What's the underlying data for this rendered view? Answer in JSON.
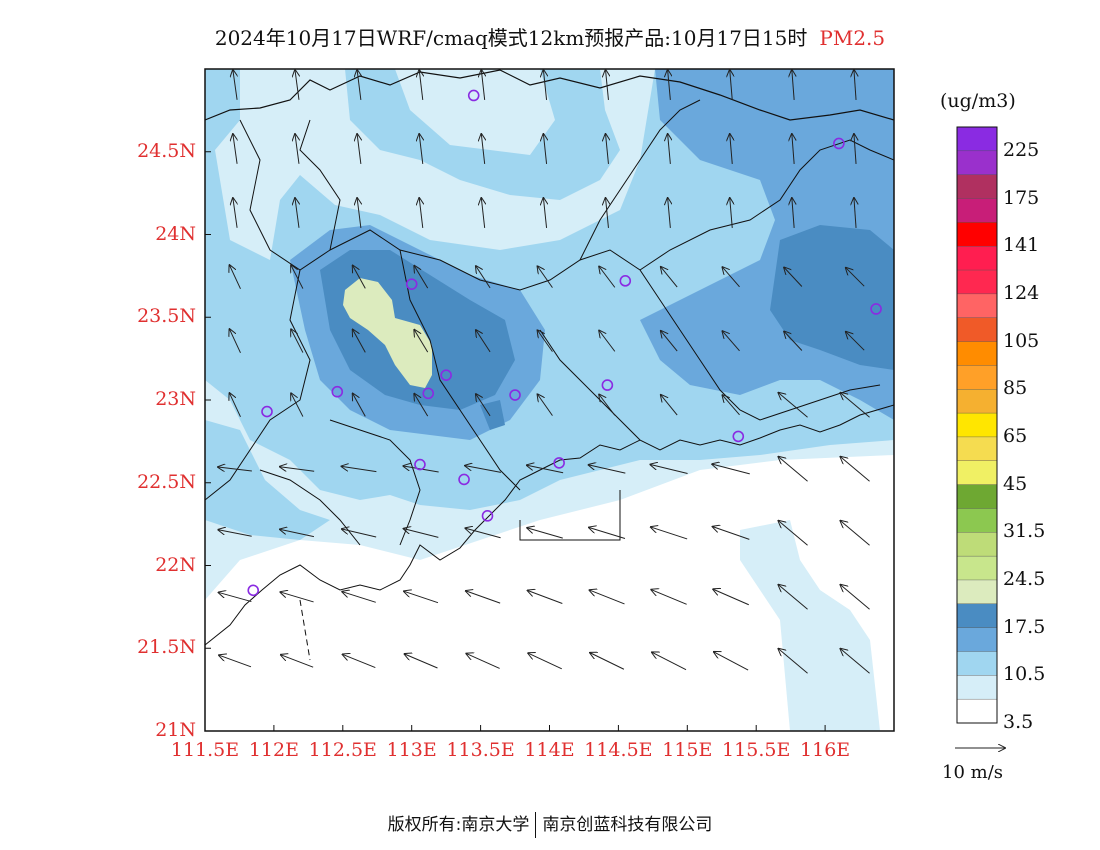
{
  "title": {
    "main": "2024年10月17日WRF/cmaq模式12km预报产品:10月17日15时",
    "variable": "PM2.5"
  },
  "axes": {
    "lat_labels": [
      "24.5N",
      "24N",
      "23.5N",
      "23N",
      "22.5N",
      "22N",
      "21.5N",
      "21N"
    ],
    "lat_values": [
      24.5,
      24.0,
      23.5,
      23.0,
      22.5,
      22.0,
      21.5,
      21.0
    ],
    "lon_labels": [
      "111.5E",
      "112E",
      "112.5E",
      "113E",
      "113.5E",
      "114E",
      "114.5E",
      "115E",
      "115.5E",
      "116E"
    ],
    "lon_values": [
      111.5,
      112.0,
      112.5,
      113.0,
      113.5,
      114.0,
      114.5,
      115.0,
      115.5,
      116.0
    ],
    "lat_range": [
      21.0,
      25.0
    ],
    "lon_range": [
      111.5,
      116.5
    ]
  },
  "colorbar": {
    "unit": "(ug/m3)",
    "labels": [
      "225",
      "175",
      "141",
      "124",
      "105",
      "85",
      "65",
      "45",
      "31.5",
      "24.5",
      "17.5",
      "10.5",
      "3.5"
    ],
    "colors": [
      "#8a2be2",
      "#9a30cc",
      "#b03060",
      "#c81e78",
      "#ff0000",
      "#ff1e50",
      "#ff2850",
      "#ff6464",
      "#f05a28",
      "#ff8c00",
      "#ffa028",
      "#f5b030",
      "#ffe600",
      "#f5dc50",
      "#f0f064",
      "#6ea832",
      "#8cc850",
      "#bedc78",
      "#c8e68c",
      "#dcebbe",
      "#4a8cc2",
      "#6aa8dc",
      "#a0d6f0",
      "#d6eef8",
      "#ffffff"
    ]
  },
  "wind_reference": {
    "label": "10 m/s"
  },
  "footer": {
    "left": "版权所有:南京大学",
    "right": "南京创蓝科技有限公司"
  },
  "stations": [
    {
      "lon": 113.45,
      "lat": 24.84
    },
    {
      "lon": 116.1,
      "lat": 24.55
    },
    {
      "lon": 113.0,
      "lat": 23.7
    },
    {
      "lon": 114.55,
      "lat": 23.72
    },
    {
      "lon": 116.37,
      "lat": 23.55
    },
    {
      "lon": 113.25,
      "lat": 23.15
    },
    {
      "lon": 112.46,
      "lat": 23.05
    },
    {
      "lon": 113.12,
      "lat": 23.04
    },
    {
      "lon": 113.75,
      "lat": 23.03
    },
    {
      "lon": 114.42,
      "lat": 23.09
    },
    {
      "lon": 111.95,
      "lat": 22.93
    },
    {
      "lon": 115.37,
      "lat": 22.78
    },
    {
      "lon": 113.06,
      "lat": 22.61
    },
    {
      "lon": 113.38,
      "lat": 22.52
    },
    {
      "lon": 114.07,
      "lat": 22.62
    },
    {
      "lon": 113.55,
      "lat": 22.3
    },
    {
      "lon": 111.85,
      "lat": 21.85
    }
  ]
}
